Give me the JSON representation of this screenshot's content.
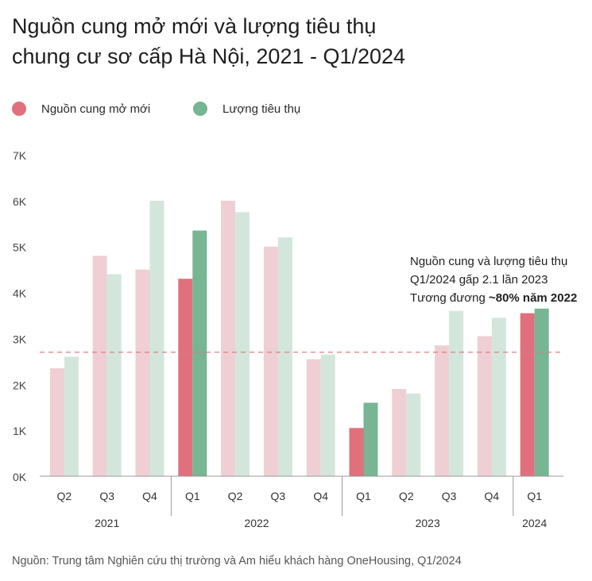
{
  "title_line1": "Nguồn cung mở mới và lượng tiêu thụ",
  "title_line2": "chung cư sơ cấp Hà Nội, 2021 - Q1/2024",
  "legend": {
    "supply_label": "Nguồn cung mở mới",
    "sales_label": "Lượng tiêu thụ"
  },
  "colors": {
    "supply_highlight": "#e0707c",
    "sales_highlight": "#77b593",
    "supply_faded": "#efcfd3",
    "sales_faded": "#d3e6dc",
    "reference_line": "#e07a84",
    "axis": "#999999"
  },
  "annotation": {
    "line1": "Nguồn cung và lượng tiêu thụ",
    "line2": "Q1/2024 gấp 2.1 lần 2023",
    "line3_prefix": "Tương đương ",
    "line3_bold": "~80% năm 2022"
  },
  "source": "Nguồn: Trung tâm Nghiên cứu thị trường và Am hiểu khách hàng OneHousing, Q1/2024",
  "chart_data": {
    "type": "bar",
    "title": "Nguồn cung mở mới và lượng tiêu thụ chung cư sơ cấp Hà Nội, 2021 - Q1/2024",
    "categories": [
      "Q2",
      "Q3",
      "Q4",
      "Q1",
      "Q2",
      "Q3",
      "Q4",
      "Q1",
      "Q2",
      "Q3",
      "Q4",
      "Q1"
    ],
    "year_groups": [
      {
        "label": "2021",
        "count": 3
      },
      {
        "label": "2022",
        "count": 4
      },
      {
        "label": "2023",
        "count": 4
      },
      {
        "label": "2024",
        "count": 1
      }
    ],
    "series": [
      {
        "name": "Nguồn cung mở mới",
        "values": [
          2350,
          4800,
          4500,
          4300,
          6000,
          5000,
          2550,
          1050,
          1900,
          2850,
          3050,
          3550
        ]
      },
      {
        "name": "Lượng tiêu thụ",
        "values": [
          2600,
          4400,
          6000,
          5350,
          5750,
          5200,
          2650,
          1600,
          1800,
          3600,
          3450,
          3650
        ]
      }
    ],
    "highlighted_categories": [
      3,
      7,
      11
    ],
    "reference_line": 2700,
    "y_ticks": [
      "0K",
      "1K",
      "2K",
      "3K",
      "4K",
      "5K",
      "6K",
      "7K"
    ],
    "ylim": [
      0,
      7000
    ],
    "xlabel": "",
    "ylabel": ""
  }
}
